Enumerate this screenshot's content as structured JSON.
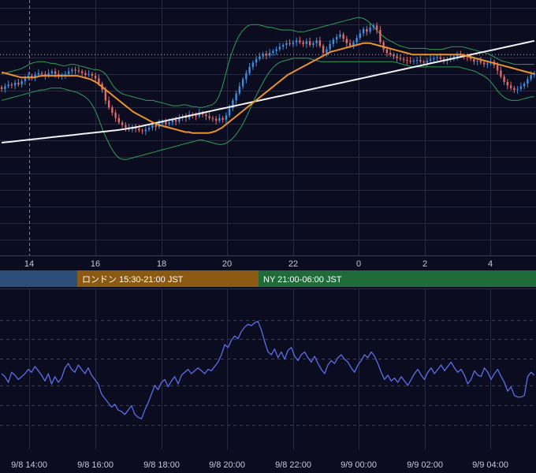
{
  "colors": {
    "background": "#0b0c1f",
    "grid": "#262a40",
    "up_candle": "#3d8fe0",
    "down_candle": "#e06b6b",
    "bollinger": "#2e9e55",
    "ma_fast": "#e8932d",
    "ma_slow": "#f2f2f2",
    "reference_line": "#b8b8b8",
    "oscillator": "#5b6ee8",
    "session_tokyo": "#2b4d78",
    "session_london": "#8b5a12",
    "session_ny": "#1f6b3a"
  },
  "chart_data": [
    {
      "type": "line",
      "description_type": "candlestick",
      "x_tick_labels": [
        "14",
        "16",
        "18",
        "20",
        "22",
        "0",
        "2",
        "4"
      ],
      "grid": true,
      "series": [
        {
          "role": "close",
          "values": [
            -0.55,
            -0.4,
            -0.3,
            -0.35,
            -0.2,
            -0.3,
            -0.1,
            0.05,
            0.2,
            0.1,
            0.25,
            0.35,
            0.3,
            0.2,
            0.35,
            0.45,
            0.3,
            0.15,
            0.25,
            0.3,
            0.45,
            0.55,
            0.5,
            0.45,
            0.35,
            0.25,
            0.3,
            0.2,
            0.05,
            -0.25,
            -0.6,
            -1.2,
            -1.6,
            -1.9,
            -2.2,
            -2.45,
            -2.6,
            -2.75,
            -2.85,
            -2.7,
            -2.8,
            -2.9,
            -2.95,
            -2.85,
            -2.75,
            -2.6,
            -2.7,
            -2.5,
            -2.4,
            -2.55,
            -2.45,
            -2.3,
            -2.4,
            -2.2,
            -2.1,
            -2.2,
            -2.0,
            -2.05,
            -2.1,
            -1.9,
            -2.0,
            -2.1,
            -2.2,
            -2.25,
            -2.35,
            -2.2,
            -2.3,
            -2.05,
            -1.65,
            -1.2,
            -0.8,
            -0.4,
            0.0,
            0.35,
            0.7,
            0.95,
            1.15,
            1.3,
            1.45,
            1.35,
            1.5,
            1.6,
            1.7,
            1.85,
            1.95,
            2.05,
            2.0,
            2.1,
            2.2,
            2.1,
            2.0,
            2.15,
            1.95,
            2.05,
            2.2,
            1.9,
            1.5,
            1.7,
            2.0,
            2.25,
            2.4,
            2.55,
            2.3,
            2.05,
            1.9,
            2.1,
            2.35,
            2.6,
            2.85,
            2.7,
            2.95,
            3.05,
            2.8,
            2.1,
            1.7,
            1.5,
            1.4,
            1.3,
            1.2,
            1.15,
            1.1,
            1.05,
            1.0,
            1.05,
            1.1,
            1.0,
            0.95,
            1.05,
            1.15,
            1.2,
            1.25,
            1.15,
            1.05,
            1.1,
            1.2,
            1.3,
            1.4,
            1.35,
            1.3,
            1.25,
            1.15,
            1.0,
            1.05,
            0.95,
            0.85,
            0.9,
            1.0,
            0.8,
            0.5,
            0.15,
            -0.15,
            -0.35,
            -0.5,
            -0.6,
            -0.55,
            -0.4,
            -0.25,
            0.0,
            0.25,
            0.35
          ]
        },
        {
          "role": "bollinger_upper",
          "values": [
            0.3,
            0.35,
            0.4,
            0.45,
            0.5,
            0.55,
            0.6,
            0.7,
            0.8,
            0.9,
            0.95,
            1.0,
            1.0,
            1.0,
            0.95,
            0.9,
            0.9,
            0.85,
            0.8,
            0.75,
            0.8,
            0.85,
            0.85,
            0.8,
            0.75,
            0.7,
            0.65,
            0.6,
            0.55,
            0.55,
            0.5,
            0.4,
            0.2,
            -0.1,
            -0.4,
            -0.6,
            -0.75,
            -0.85,
            -0.9,
            -0.95,
            -1.0,
            -1.05,
            -1.1,
            -1.15,
            -1.2,
            -1.2,
            -1.2,
            -1.25,
            -1.3,
            -1.35,
            -1.4,
            -1.45,
            -1.5,
            -1.5,
            -1.5,
            -1.45,
            -1.45,
            -1.5,
            -1.55,
            -1.55,
            -1.6,
            -1.6,
            -1.55,
            -1.5,
            -1.45,
            -1.3,
            -1.0,
            -0.5,
            0.2,
            0.9,
            1.5,
            2.0,
            2.4,
            2.7,
            2.9,
            3.05,
            3.1,
            3.1,
            3.1,
            3.05,
            3.0,
            2.95,
            2.95,
            2.9,
            2.85,
            2.8,
            2.8,
            2.8,
            2.8,
            2.75,
            2.7,
            2.7,
            2.7,
            2.75,
            2.8,
            2.85,
            2.9,
            2.95,
            3.0,
            3.05,
            3.1,
            3.15,
            3.2,
            3.25,
            3.3,
            3.35,
            3.4,
            3.45,
            3.5,
            3.5,
            3.45,
            3.35,
            3.2,
            3.0,
            2.8,
            2.6,
            2.45,
            2.3,
            2.2,
            2.1,
            2.0,
            1.9,
            1.85,
            1.8,
            1.75,
            1.75,
            1.75,
            1.75,
            1.75,
            1.75,
            1.7,
            1.7,
            1.7,
            1.7,
            1.7,
            1.75,
            1.8,
            1.85,
            1.85,
            1.85,
            1.85,
            1.8,
            1.75,
            1.7,
            1.65,
            1.6,
            1.55,
            1.5,
            1.45,
            1.35,
            1.25,
            1.15,
            1.05,
            1.0,
            0.95,
            0.9,
            0.85,
            0.85,
            0.85,
            0.85,
            0.85,
            0.85,
            0.85
          ]
        },
        {
          "role": "bollinger_lower",
          "values": [
            -1.2,
            -1.15,
            -1.1,
            -1.05,
            -1.0,
            -0.95,
            -0.9,
            -0.85,
            -0.8,
            -0.75,
            -0.7,
            -0.65,
            -0.6,
            -0.6,
            -0.55,
            -0.5,
            -0.5,
            -0.5,
            -0.5,
            -0.55,
            -0.6,
            -0.65,
            -0.7,
            -0.75,
            -0.85,
            -0.95,
            -1.1,
            -1.3,
            -1.6,
            -2.0,
            -2.5,
            -3.0,
            -3.4,
            -3.8,
            -4.1,
            -4.35,
            -4.5,
            -4.55,
            -4.55,
            -4.5,
            -4.45,
            -4.4,
            -4.35,
            -4.3,
            -4.25,
            -4.2,
            -4.15,
            -4.1,
            -4.05,
            -4.0,
            -3.95,
            -3.9,
            -3.85,
            -3.8,
            -3.75,
            -3.7,
            -3.65,
            -3.6,
            -3.55,
            -3.5,
            -3.45,
            -3.45,
            -3.5,
            -3.55,
            -3.6,
            -3.65,
            -3.7,
            -3.7,
            -3.65,
            -3.55,
            -3.4,
            -3.2,
            -2.95,
            -2.65,
            -2.3,
            -1.9,
            -1.5,
            -1.1,
            -0.7,
            -0.35,
            0.0,
            0.3,
            0.55,
            0.75,
            0.9,
            1.0,
            1.05,
            1.1,
            1.15,
            1.2,
            1.2,
            1.2,
            1.2,
            1.2,
            1.15,
            1.1,
            1.05,
            1.0,
            1.0,
            1.0,
            1.0,
            1.0,
            1.0,
            1.0,
            1.0,
            1.0,
            1.0,
            1.0,
            1.0,
            1.0,
            1.0,
            1.0,
            1.0,
            1.0,
            1.0,
            1.0,
            1.0,
            1.0,
            1.0,
            1.0,
            0.95,
            0.9,
            0.85,
            0.8,
            0.75,
            0.7,
            0.7,
            0.7,
            0.7,
            0.7,
            0.7,
            0.7,
            0.7,
            0.7,
            0.7,
            0.7,
            0.7,
            0.7,
            0.7,
            0.7,
            0.65,
            0.6,
            0.55,
            0.5,
            0.45,
            0.35,
            0.25,
            0.15,
            0.0,
            -0.2,
            -0.45,
            -0.7,
            -0.9,
            -1.05,
            -1.15,
            -1.2,
            -1.2,
            -1.2,
            -1.15,
            -1.1,
            -1.05,
            -1.0,
            -1.0
          ]
        },
        {
          "role": "moving_average_fast",
          "values": [
            0.4,
            0.35,
            0.3,
            0.25,
            0.2,
            0.15,
            0.1,
            0.1,
            0.1,
            0.1,
            0.1,
            0.15,
            0.2,
            0.2,
            0.2,
            0.2,
            0.2,
            0.2,
            0.2,
            0.2,
            0.2,
            0.2,
            0.2,
            0.2,
            0.15,
            0.1,
            0.05,
            0.0,
            -0.1,
            -0.2,
            -0.35,
            -0.5,
            -0.65,
            -0.8,
            -0.95,
            -1.1,
            -1.25,
            -1.4,
            -1.55,
            -1.7,
            -1.85,
            -1.95,
            -2.05,
            -2.15,
            -2.25,
            -2.35,
            -2.45,
            -2.55,
            -2.6,
            -2.65,
            -2.7,
            -2.75,
            -2.8,
            -2.85,
            -2.9,
            -2.95,
            -3.0,
            -3.0,
            -3.05,
            -3.05,
            -3.05,
            -3.05,
            -3.05,
            -3.05,
            -3.0,
            -2.95,
            -2.85,
            -2.75,
            -2.6,
            -2.45,
            -2.3,
            -2.15,
            -2.0,
            -1.85,
            -1.7,
            -1.55,
            -1.4,
            -1.25,
            -1.1,
            -0.95,
            -0.8,
            -0.65,
            -0.5,
            -0.35,
            -0.2,
            -0.05,
            0.1,
            0.25,
            0.35,
            0.45,
            0.55,
            0.65,
            0.75,
            0.85,
            0.95,
            1.05,
            1.15,
            1.25,
            1.35,
            1.45,
            1.55,
            1.6,
            1.65,
            1.7,
            1.75,
            1.8,
            1.85,
            1.9,
            1.95,
            2.0,
            2.05,
            2.05,
            2.05,
            2.0,
            1.95,
            1.9,
            1.85,
            1.8,
            1.75,
            1.7,
            1.65,
            1.6,
            1.55,
            1.5,
            1.45,
            1.4,
            1.4,
            1.4,
            1.4,
            1.4,
            1.4,
            1.4,
            1.4,
            1.4,
            1.4,
            1.4,
            1.4,
            1.4,
            1.4,
            1.4,
            1.4,
            1.35,
            1.3,
            1.25,
            1.2,
            1.15,
            1.1,
            1.05,
            1.0,
            0.95,
            0.9,
            0.85,
            0.8,
            0.75,
            0.7,
            0.65,
            0.6,
            0.55,
            0.5,
            0.45,
            0.4,
            0.35,
            0.3
          ]
        },
        {
          "role": "moving_average_slow",
          "values": [
            -3.6,
            -3.58,
            -3.56,
            -3.54,
            -3.52,
            -3.5,
            -3.48,
            -3.46,
            -3.44,
            -3.42,
            -3.4,
            -3.38,
            -3.36,
            -3.34,
            -3.32,
            -3.3,
            -3.28,
            -3.26,
            -3.24,
            -3.22,
            -3.2,
            -3.18,
            -3.16,
            -3.14,
            -3.12,
            -3.1,
            -3.08,
            -3.06,
            -3.04,
            -3.02,
            -3.0,
            -2.98,
            -2.96,
            -2.94,
            -2.92,
            -2.9,
            -2.88,
            -2.85,
            -2.82,
            -2.79,
            -2.76,
            -2.73,
            -2.7,
            -2.66,
            -2.62,
            -2.58,
            -2.54,
            -2.5,
            -2.46,
            -2.42,
            -2.38,
            -2.34,
            -2.3,
            -2.26,
            -2.22,
            -2.18,
            -2.14,
            -2.1,
            -2.06,
            -2.02,
            -1.98,
            -1.94,
            -1.9,
            -1.86,
            -1.82,
            -1.78,
            -1.74,
            -1.7,
            -1.66,
            -1.62,
            -1.58,
            -1.54,
            -1.5,
            -1.46,
            -1.42,
            -1.38,
            -1.34,
            -1.3,
            -1.26,
            -1.22,
            -1.18,
            -1.14,
            -1.1,
            -1.06,
            -1.02,
            -0.98,
            -0.94,
            -0.9,
            -0.86,
            -0.82,
            -0.78,
            -0.74,
            -0.7,
            -0.66,
            -0.62,
            -0.58,
            -0.54,
            -0.5,
            -0.46,
            -0.42,
            -0.38,
            -0.34,
            -0.3,
            -0.26,
            -0.22,
            -0.18,
            -0.14,
            -0.1,
            -0.06,
            -0.02,
            0.02,
            0.06,
            0.1,
            0.14,
            0.18,
            0.22,
            0.26,
            0.3,
            0.34,
            0.38,
            0.42,
            0.46,
            0.5,
            0.54,
            0.58,
            0.62,
            0.66,
            0.7,
            0.74,
            0.78,
            0.82,
            0.86,
            0.9,
            0.94,
            0.98,
            1.02,
            1.06,
            1.1,
            1.14,
            1.18,
            1.22,
            1.26,
            1.3,
            1.34,
            1.38,
            1.42,
            1.46,
            1.5,
            1.54,
            1.58,
            1.62,
            1.66,
            1.7,
            1.74,
            1.78,
            1.82,
            1.86,
            1.9,
            1.94,
            1.98,
            2.02,
            2.06,
            2.1,
            2.14,
            2.18
          ]
        },
        {
          "role": "reference_level",
          "values": [
            1.4
          ]
        }
      ],
      "y_range": [
        -10,
        4.5
      ]
    },
    {
      "type": "line",
      "x_tick_labels": [
        "9/8 14:00",
        "9/8 16:00",
        "9/8 18:00",
        "9/8 20:00",
        "9/8 22:00",
        "9/9 00:00",
        "9/9 02:00",
        "9/9 04:00"
      ],
      "grid": true,
      "series": [
        {
          "role": "oscillator",
          "values": [
            0.2,
            0.0,
            -0.4,
            0.3,
            0.1,
            -0.2,
            0.0,
            0.2,
            0.5,
            0.3,
            0.7,
            0.4,
            0.1,
            -0.3,
            0.2,
            -0.5,
            0.0,
            -0.4,
            -0.1,
            0.6,
            0.9,
            0.5,
            0.3,
            0.8,
            0.5,
            0.2,
            0.6,
            0.1,
            -0.2,
            -0.5,
            -1.2,
            -1.5,
            -1.8,
            -2.1,
            -1.9,
            -2.3,
            -2.4,
            -2.6,
            -2.3,
            -2.0,
            -2.6,
            -2.8,
            -2.9,
            -2.3,
            -1.8,
            -1.2,
            -0.6,
            -0.9,
            -0.4,
            -0.2,
            -0.7,
            -0.3,
            0.0,
            -0.5,
            0.1,
            0.3,
            0.5,
            0.2,
            0.4,
            0.6,
            0.4,
            0.2,
            0.5,
            0.4,
            0.7,
            1.0,
            1.5,
            2.2,
            2.0,
            2.5,
            2.8,
            2.6,
            3.1,
            3.4,
            3.6,
            3.5,
            3.7,
            3.8,
            3.2,
            2.4,
            1.7,
            1.5,
            1.9,
            1.3,
            1.7,
            1.2,
            1.8,
            2.0,
            1.4,
            1.1,
            1.5,
            1.7,
            1.3,
            1.0,
            1.4,
            0.9,
            0.5,
            0.2,
            0.8,
            1.1,
            0.9,
            1.3,
            1.5,
            1.2,
            1.0,
            0.6,
            0.3,
            0.8,
            1.1,
            1.5,
            1.3,
            1.7,
            1.4,
            0.9,
            0.3,
            -0.2,
            0.1,
            -0.3,
            -0.1,
            -0.4,
            0.0,
            -0.3,
            -0.6,
            -0.2,
            0.2,
            0.5,
            0.1,
            -0.2,
            0.3,
            0.6,
            0.2,
            0.5,
            0.8,
            0.4,
            0.7,
            1.0,
            0.6,
            0.3,
            0.5,
            0.1,
            -0.5,
            -0.2,
            0.4,
            0.1,
            0.0,
            0.6,
            0.3,
            -0.2,
            0.2,
            0.5,
            0.0,
            -0.4,
            -1.0,
            -0.7,
            -1.3,
            -1.4,
            -1.4,
            -1.3,
            0.0,
            0.3,
            0.1
          ]
        }
      ],
      "y_range": [
        -5,
        6
      ]
    }
  ],
  "sessions": [
    {
      "label": ""
    },
    {
      "label": "ロンドン 15:30-21:00 JST"
    },
    {
      "label": "NY 21:00-06:00 JST"
    }
  ]
}
